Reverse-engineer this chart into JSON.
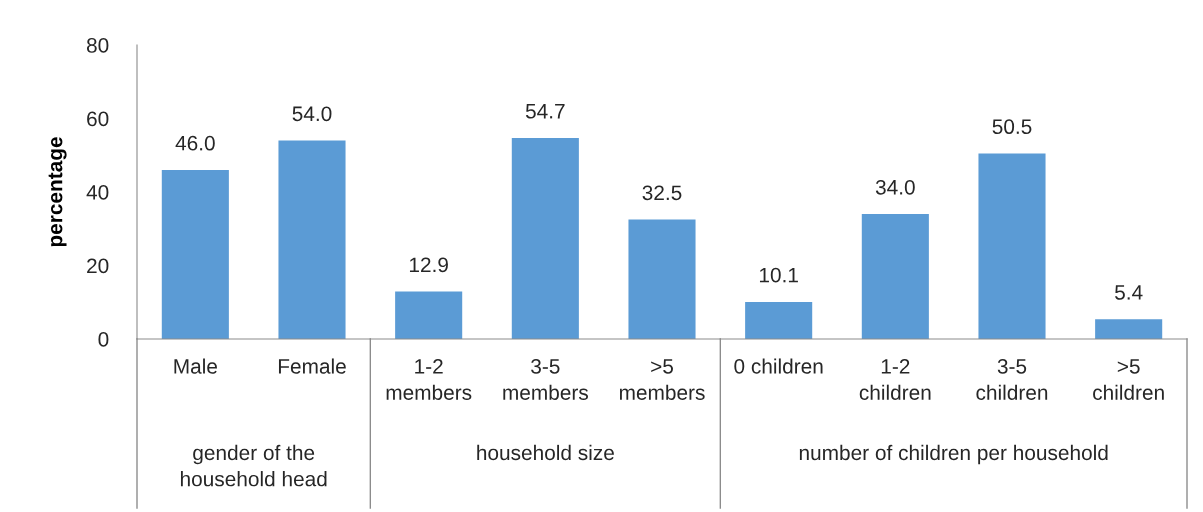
{
  "chart_data": [
    {
      "type": "bar",
      "categories": [
        "Male",
        "Female"
      ],
      "values": [
        46.0,
        54.0
      ],
      "value_labels": [
        "46.0",
        "54.0"
      ],
      "color": "#5b9bd5",
      "xlabel": "gender of the\nhousehold head",
      "ylabel": "percentage",
      "ylim": [
        0,
        80
      ],
      "yticks": [
        0,
        20,
        40,
        60,
        80
      ]
    },
    {
      "type": "bar",
      "categories": [
        "1-2\nmembers",
        "3-5\nmembers",
        ">5\nmembers"
      ],
      "values": [
        12.9,
        54.7,
        32.5
      ],
      "value_labels": [
        "12.9",
        "54.7",
        "32.5"
      ],
      "color": "#5b9bd5",
      "xlabel": "household size",
      "ylim": [
        0,
        80
      ],
      "tick_labels": "x"
    },
    {
      "type": "bar",
      "categories": [
        "0 children",
        "1-2\nchildren",
        "3-5\nchildren",
        ">5\nchildren"
      ],
      "values": [
        10.1,
        34.0,
        50.5,
        5.4
      ],
      "value_labels": [
        "10.1",
        "34.0",
        "50.5",
        "5.4"
      ],
      "color": "#5b9bd5",
      "xlabel": "number of children per household",
      "ylim": [
        0,
        80
      ],
      "tick_labels": "x"
    }
  ]
}
